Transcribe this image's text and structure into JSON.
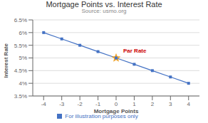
{
  "chart_data": {
    "type": "line",
    "title": "Mortgage Points vs. Interest Rate",
    "subtitle": "Source: usmo.org",
    "x_label": "Mortgage Points",
    "y_label": "Interest Rate",
    "x": [
      -4,
      -3,
      -2,
      -1,
      0,
      1,
      2,
      3,
      4
    ],
    "series": [
      {
        "name": "For illustration purposes only",
        "color": "#4472c4",
        "marker": "square",
        "values": [
          6.0,
          5.75,
          5.5,
          5.25,
          5.0,
          4.75,
          4.5,
          4.25,
          4.0
        ]
      }
    ],
    "annotations": [
      {
        "text": "Par Rate",
        "x": 0,
        "y": 5.0,
        "color": "#cc0000",
        "marker": "star",
        "marker_color": "#f5a623"
      }
    ],
    "xlim": [
      -4.6,
      4.6
    ],
    "xticks": [
      -4,
      -3,
      -2,
      -1,
      0,
      1,
      2,
      3,
      4
    ],
    "ylim": [
      3.5,
      6.5
    ],
    "yticks": [
      {
        "value": 3.5,
        "label": "3.5%"
      },
      {
        "value": 4.0,
        "label": "4%"
      },
      {
        "value": 4.5,
        "label": "4.5%"
      },
      {
        "value": 5.0,
        "label": "5%"
      },
      {
        "value": 5.5,
        "label": "5.5%"
      },
      {
        "value": 6.0,
        "label": "6%"
      },
      {
        "value": 6.5,
        "label": "6.5%"
      }
    ],
    "grid": "y",
    "legend": "bottom"
  }
}
